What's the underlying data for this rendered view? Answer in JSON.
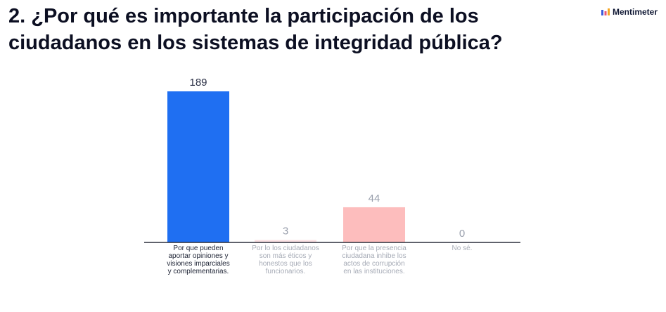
{
  "header": {
    "title": "2. ¿Por qué es importante la participación de los ciudadanos en los sistemas de integridad pública?",
    "brand": "Mentimeter"
  },
  "colors": {
    "highlight_bar": "#1f6ff2",
    "faded_bar": "#fdbdbd",
    "faded_bar_light": "#fbe0e3",
    "axis": "#2b2e3b"
  },
  "chart_data": {
    "type": "bar",
    "title": "2. ¿Por qué es importante la participación de los ciudadanos en los sistemas de integridad pública?",
    "xlabel": "",
    "ylabel": "",
    "grid": false,
    "ylim": [
      0,
      189
    ],
    "categories": [
      "Por que pueden aportar opiniones y visiones imparciales y complementarias.",
      "Por lo los ciudadanos son más éticos y honestos que los funcionarios.",
      "Por que la presencia ciudadana inhibe los actos de corrupción en las instituciones.",
      "No sé."
    ],
    "values": [
      189,
      3,
      44,
      0
    ],
    "bar_colors": [
      "#1f6ff2",
      "#fbe0e3",
      "#fdbdbd",
      "#fdbdbd"
    ]
  }
}
